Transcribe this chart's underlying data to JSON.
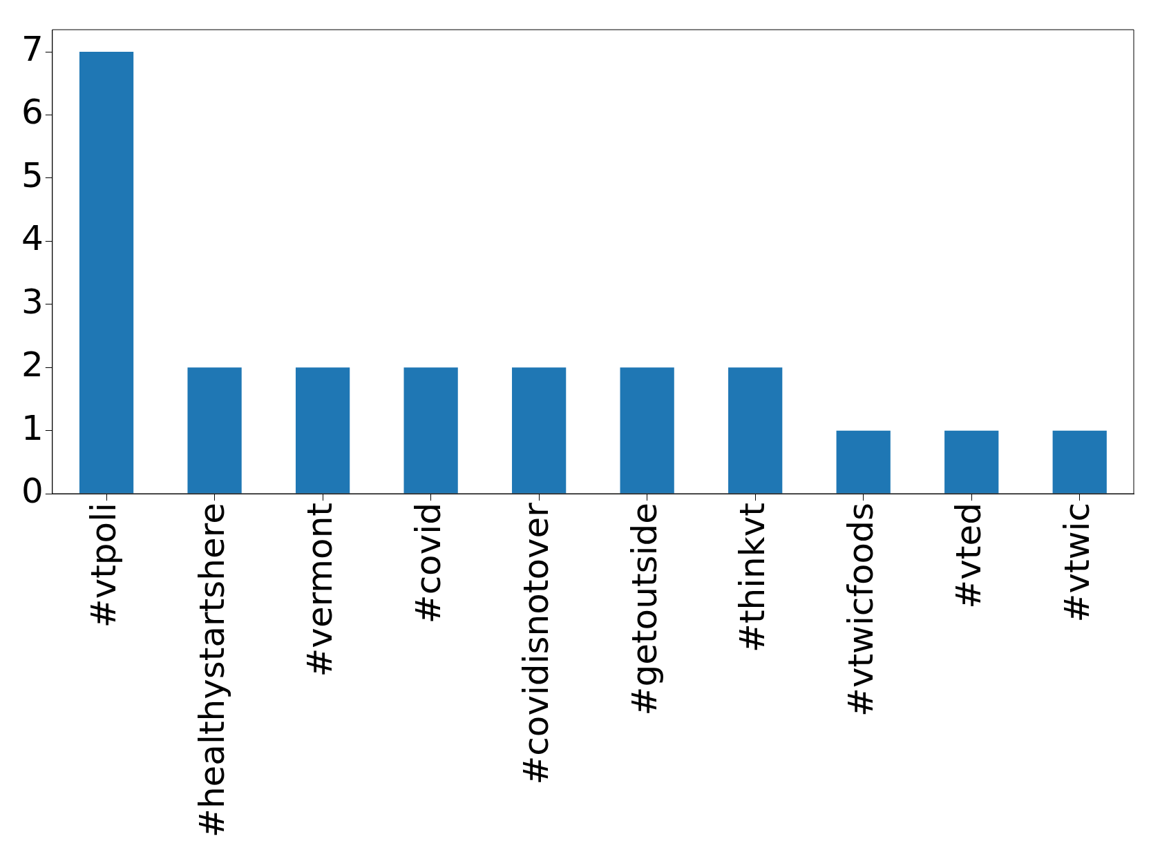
{
  "chart_data": {
    "type": "bar",
    "categories": [
      "#vtpoli",
      "#healthystartshere",
      "#vermont",
      "#covid",
      "#covidisnotover",
      "#getoutside",
      "#thinkvt",
      "#vtwicfoods",
      "#vted",
      "#vtwic"
    ],
    "values": [
      7,
      2,
      2,
      2,
      2,
      2,
      2,
      1,
      1,
      1
    ],
    "color": "#1f77b4",
    "ylim": [
      0,
      7.35
    ],
    "yticks": [
      0,
      1,
      2,
      3,
      4,
      5,
      6,
      7
    ],
    "legend": false
  }
}
